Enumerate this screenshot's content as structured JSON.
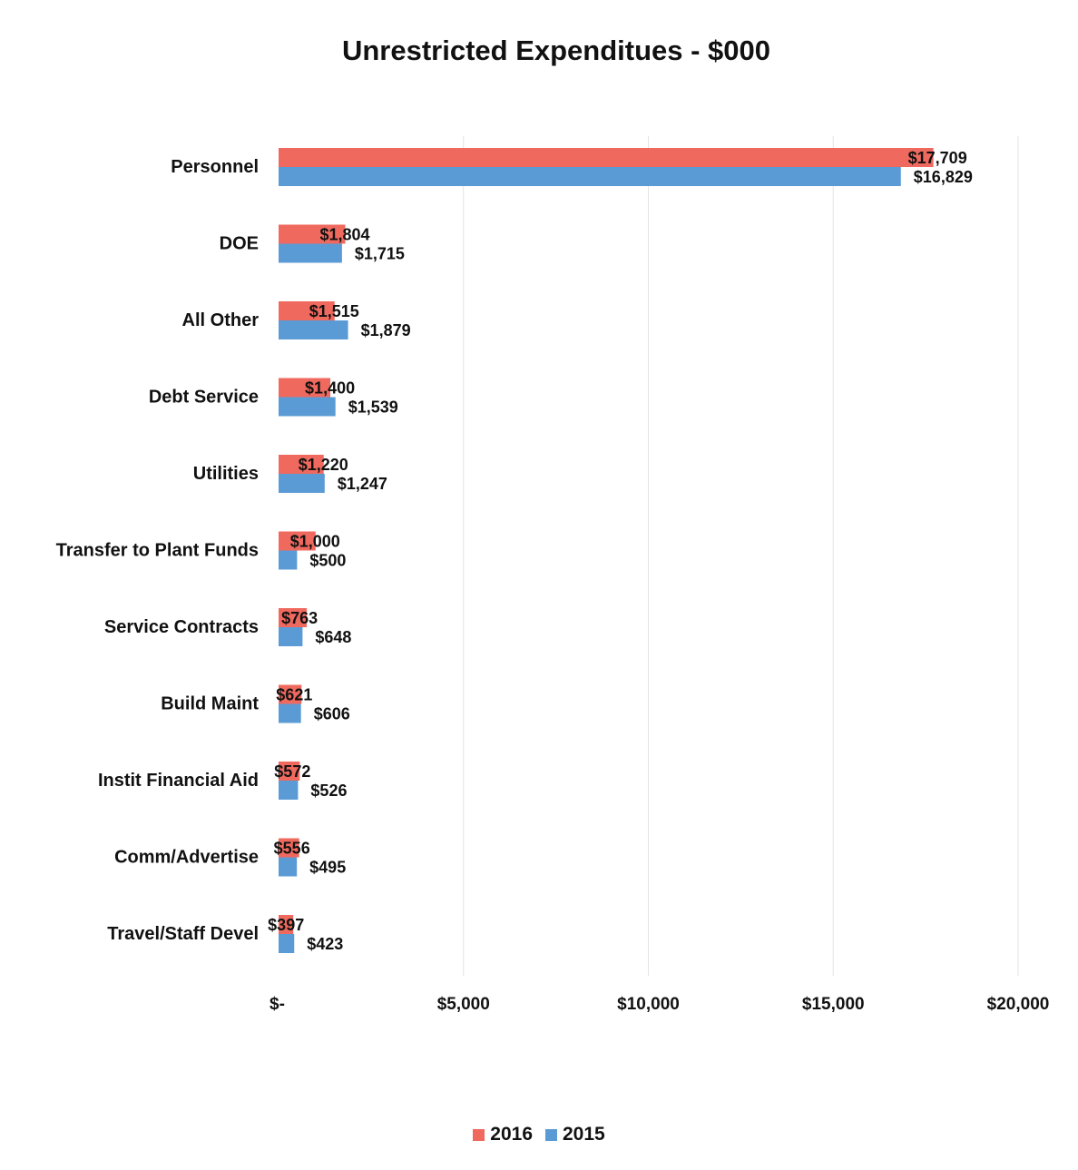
{
  "chart_data": {
    "type": "bar",
    "orientation": "horizontal",
    "title": "Unrestricted Expenditues - $000",
    "categories": [
      "Personnel",
      "DOE",
      "All Other",
      "Debt Service",
      "Utilities",
      "Transfer to Plant Funds",
      "Service Contracts",
      "Build Maint",
      "Instit Financial Aid",
      "Comm/Advertise",
      "Travel/Staff Devel"
    ],
    "series": [
      {
        "name": "2016",
        "color": "#F0695E",
        "values": [
          17709,
          1804,
          1515,
          1400,
          1220,
          1000,
          763,
          621,
          572,
          556,
          397
        ],
        "labels": [
          "$17,709",
          "$1,804",
          "$1,515",
          "$1,400",
          "$1,220",
          "$1,000",
          "$763",
          "$621",
          "$572",
          "$556",
          "$397"
        ]
      },
      {
        "name": "2015",
        "color": "#5B9BD5",
        "values": [
          16829,
          1715,
          1879,
          1539,
          1247,
          500,
          648,
          606,
          526,
          495,
          423
        ],
        "labels": [
          "$16,829",
          "$1,715",
          "$1,879",
          "$1,539",
          "$1,247",
          "$500",
          "$648",
          "$606",
          "$526",
          "$495",
          "$423"
        ]
      }
    ],
    "xlim": [
      0,
      20000
    ],
    "x_ticks": [
      0,
      5000,
      10000,
      15000,
      20000
    ],
    "x_tick_labels": [
      "$-",
      "$5,000",
      "$10,000",
      "$15,000",
      "$20,000"
    ],
    "grid": true,
    "legend_position": "bottom"
  }
}
